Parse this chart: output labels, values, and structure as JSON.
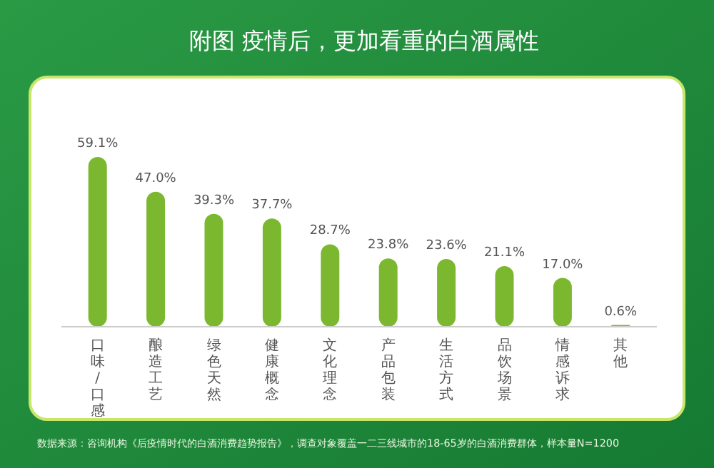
{
  "chart_data": {
    "type": "bar",
    "title": "附图  疫情后，更加看重的白酒属性",
    "categories": [
      "口味/口感",
      "酿造工艺",
      "绿色天然",
      "健康概念",
      "文化理念",
      "产品包装",
      "生活方式",
      "品饮场景",
      "情感诉求",
      "其他"
    ],
    "values": [
      59.1,
      47.0,
      39.3,
      37.7,
      28.7,
      23.8,
      23.6,
      21.1,
      17.0,
      0.6
    ],
    "color": "#7cb82f",
    "value_labels": [
      "59.1%",
      "47.0%",
      "39.3%",
      "37.7%",
      "28.7%",
      "23.8%",
      "23.6%",
      "21.1%",
      "17.0%",
      "0.6%"
    ],
    "annotations": [
      "数据来源：咨询机构《后疫情时代的白酒消费趋势报告》，调查对象覆盖一二三线城市的18-65岁的白酒消费群体，样本量N=1200"
    ]
  }
}
